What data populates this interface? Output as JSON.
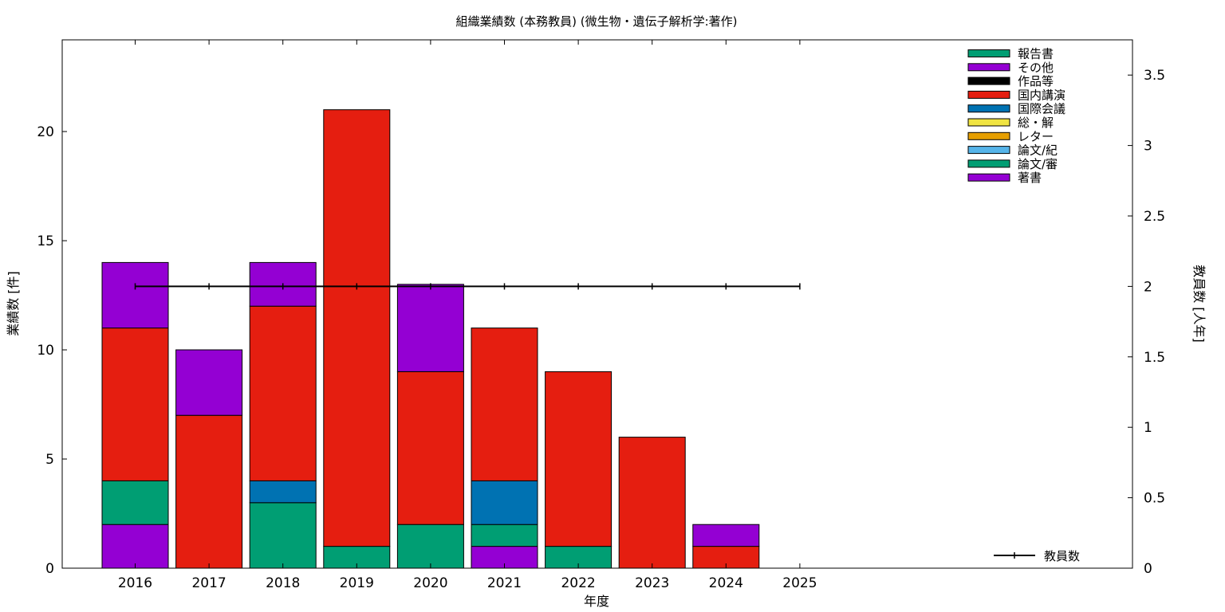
{
  "chart_data": {
    "type": "bar",
    "title": "組織業績数 (本務教員) (微生物・遺伝子解析学:著作)",
    "xlabel": "年度",
    "ylabel": "業績数 [件]",
    "y2label": "教員数 [人年]",
    "categories": [
      "2016",
      "2017",
      "2018",
      "2019",
      "2020",
      "2021",
      "2022",
      "2023",
      "2024",
      "2025"
    ],
    "ylim": [
      0,
      24.2
    ],
    "y2lim": [
      0,
      3.75
    ],
    "yticks": [
      0,
      5,
      10,
      15,
      20
    ],
    "y2ticks": [
      0,
      0.5,
      1,
      1.5,
      2,
      2.5,
      3,
      3.5
    ],
    "y2tick_labels": [
      "0",
      "0.5",
      "1",
      "1.5",
      "2",
      "2.5",
      "3",
      "3.5"
    ],
    "grid": false,
    "legend_position": "top-right",
    "series": [
      {
        "name": "著書",
        "color": "#9400d3",
        "values": [
          2,
          0,
          0,
          0,
          0,
          1,
          0,
          0,
          0,
          0
        ]
      },
      {
        "name": "論文/審",
        "color": "#009e73",
        "values": [
          2,
          0,
          3,
          1,
          2,
          1,
          1,
          0,
          0,
          0
        ]
      },
      {
        "name": "論文/紀",
        "color": "#56b4e9",
        "values": [
          0,
          0,
          0,
          0,
          0,
          0,
          0,
          0,
          0,
          0
        ]
      },
      {
        "name": "レター",
        "color": "#e69f00",
        "values": [
          0,
          0,
          0,
          0,
          0,
          0,
          0,
          0,
          0,
          0
        ]
      },
      {
        "name": "総・解",
        "color": "#f0e442",
        "values": [
          0,
          0,
          0,
          0,
          0,
          0,
          0,
          0,
          0,
          0
        ]
      },
      {
        "name": "国際会議",
        "color": "#0072b2",
        "values": [
          0,
          0,
          1,
          0,
          0,
          2,
          0,
          0,
          0,
          0
        ]
      },
      {
        "name": "国内講演",
        "color": "#e51e10",
        "values": [
          7,
          7,
          8,
          20,
          7,
          7,
          8,
          6,
          1,
          0
        ]
      },
      {
        "name": "作品等",
        "color": "#000000",
        "values": [
          0,
          0,
          0,
          0,
          0,
          0,
          0,
          0,
          0,
          0
        ]
      },
      {
        "name": "その他",
        "color": "#9400d3",
        "values": [
          3,
          3,
          2,
          0,
          4,
          0,
          0,
          0,
          1,
          0
        ]
      },
      {
        "name": "報告書",
        "color": "#009e73",
        "values": [
          0,
          0,
          0,
          0,
          0,
          0,
          0,
          0,
          0,
          0
        ]
      }
    ],
    "line_series": {
      "name": "教員数",
      "axis": "y2",
      "color": "#000000",
      "values": [
        2,
        2,
        2,
        2,
        2,
        2,
        2,
        2,
        2,
        2
      ]
    }
  }
}
